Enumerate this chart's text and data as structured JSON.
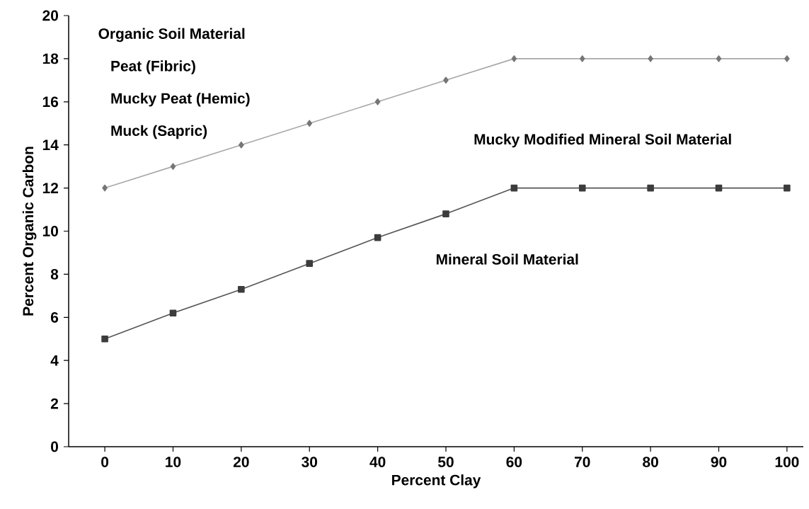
{
  "chart_data": {
    "type": "line",
    "xlabel": "Percent Clay",
    "ylabel": "Percent Organic Carbon",
    "x": [
      0,
      10,
      20,
      30,
      40,
      50,
      60,
      70,
      80,
      90,
      100
    ],
    "series": [
      {
        "color": "#a8a8a8",
        "marker": "diamond",
        "values": [
          12,
          13,
          14,
          15,
          16,
          17,
          18,
          18,
          18,
          18,
          18
        ]
      },
      {
        "color": "#555555",
        "marker": "square",
        "values": [
          5,
          6.2,
          7.3,
          8.5,
          9.7,
          10.8,
          12,
          12,
          12,
          12,
          12
        ]
      }
    ],
    "xlim": [
      -5.3,
      102.4
    ],
    "ylim": [
      0,
      20
    ],
    "xticks": [
      0,
      10,
      20,
      30,
      40,
      50,
      60,
      70,
      80,
      90,
      100
    ],
    "yticks": [
      0,
      2,
      4,
      6,
      8,
      10,
      12,
      14,
      16,
      18,
      20
    ],
    "grid": false,
    "annotations": [
      "Organic Soil Material",
      "Peat (Fibric)",
      "Mucky Peat (Hemic)",
      "Muck (Sapric)",
      "Mucky Modified Mineral Soil Material",
      "Mineral Soil Material"
    ]
  }
}
